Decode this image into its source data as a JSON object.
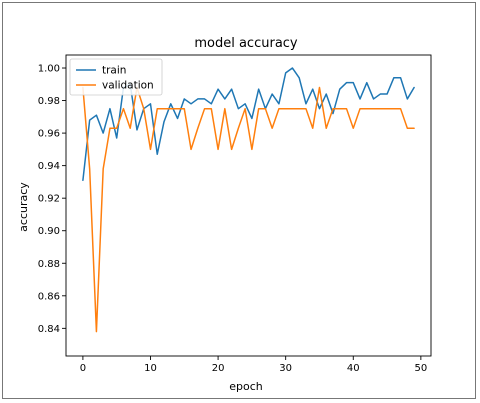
{
  "chart_data": {
    "type": "line",
    "title": "model accuracy",
    "xlabel": "epoch",
    "ylabel": "accuracy",
    "xlim": [
      -2.5,
      51.5
    ],
    "ylim": [
      0.823,
      1.008
    ],
    "xticks": [
      0,
      10,
      20,
      30,
      40,
      50
    ],
    "yticks": [
      0.84,
      0.86,
      0.88,
      0.9,
      0.92,
      0.94,
      0.96,
      0.98,
      1.0
    ],
    "xtick_labels": [
      "0",
      "10",
      "20",
      "30",
      "40",
      "50"
    ],
    "ytick_labels": [
      "0.84",
      "0.86",
      "0.88",
      "0.90",
      "0.92",
      "0.94",
      "0.96",
      "0.98",
      "1.00"
    ],
    "grid": false,
    "legend_position": "upper-left",
    "colors": {
      "train": "#1f77b4",
      "validation": "#ff7f0e"
    },
    "series": [
      {
        "name": "train",
        "x": [
          0,
          1,
          2,
          3,
          4,
          5,
          6,
          7,
          8,
          9,
          10,
          11,
          12,
          13,
          14,
          15,
          16,
          17,
          18,
          19,
          20,
          21,
          22,
          23,
          24,
          25,
          26,
          27,
          28,
          29,
          30,
          31,
          32,
          33,
          34,
          35,
          36,
          37,
          38,
          39,
          40,
          41,
          42,
          43,
          44,
          45,
          46,
          47,
          48,
          49
        ],
        "values": [
          0.931,
          0.968,
          0.971,
          0.96,
          0.975,
          0.957,
          0.988,
          0.99,
          0.962,
          0.975,
          0.978,
          0.947,
          0.967,
          0.978,
          0.969,
          0.981,
          0.978,
          0.981,
          0.981,
          0.978,
          0.987,
          0.981,
          0.987,
          0.975,
          0.978,
          0.969,
          0.987,
          0.975,
          0.984,
          0.978,
          0.997,
          1.0,
          0.994,
          0.978,
          0.987,
          0.975,
          0.984,
          0.972,
          0.987,
          0.991,
          0.991,
          0.981,
          0.991,
          0.981,
          0.984,
          0.984,
          0.994,
          0.994,
          0.981,
          0.988
        ]
      },
      {
        "name": "validation",
        "x": [
          0,
          1,
          2,
          3,
          4,
          5,
          6,
          7,
          8,
          9,
          10,
          11,
          12,
          13,
          14,
          15,
          16,
          17,
          18,
          19,
          20,
          21,
          22,
          23,
          24,
          25,
          26,
          27,
          28,
          29,
          30,
          31,
          32,
          33,
          34,
          35,
          36,
          37,
          38,
          39,
          40,
          41,
          42,
          43,
          44,
          45,
          46,
          47,
          48,
          49
        ],
        "values": [
          0.988,
          0.938,
          0.838,
          0.938,
          0.963,
          0.963,
          0.975,
          0.963,
          0.988,
          0.975,
          0.95,
          0.975,
          0.975,
          0.975,
          0.975,
          0.975,
          0.95,
          0.963,
          0.975,
          0.975,
          0.95,
          0.975,
          0.95,
          0.963,
          0.975,
          0.95,
          0.975,
          0.975,
          0.963,
          0.975,
          0.975,
          0.975,
          0.975,
          0.975,
          0.963,
          0.988,
          0.963,
          0.975,
          0.975,
          0.975,
          0.963,
          0.975,
          0.975,
          0.975,
          0.975,
          0.975,
          0.975,
          0.975,
          0.963,
          0.963
        ]
      }
    ]
  }
}
